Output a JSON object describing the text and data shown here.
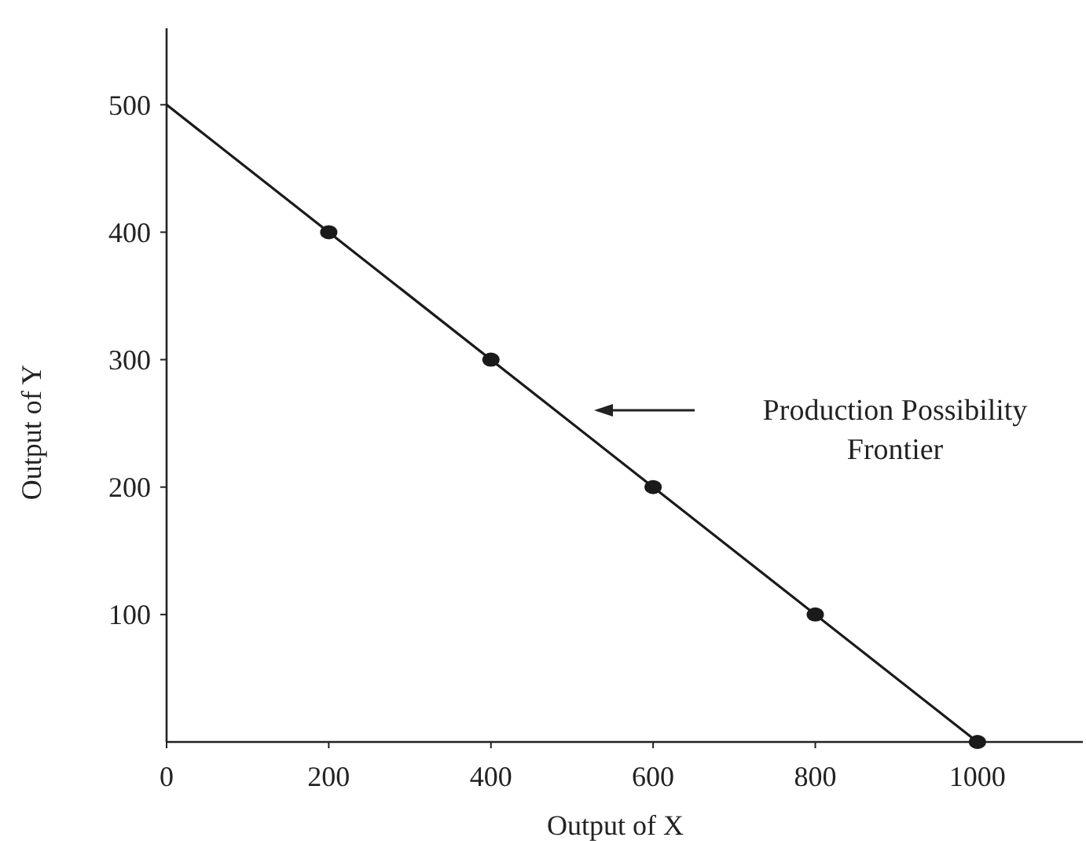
{
  "chart_data": {
    "type": "line",
    "xlabel": "Output of X",
    "ylabel": "Output of Y",
    "series": [
      {
        "color": "#1a1a1a",
        "x": [
          0,
          1000
        ],
        "values": [
          500,
          0
        ],
        "marker": "none"
      },
      {
        "type": "scatter",
        "color": "#1a1a1a",
        "x": [
          200,
          400,
          600,
          800,
          1000
        ],
        "values": [
          400,
          300,
          200,
          100,
          0
        ],
        "marker": "circle"
      }
    ],
    "xlim": [
      0,
      1130
    ],
    "ylim": [
      0,
      560
    ],
    "xticks": [
      0,
      200,
      400,
      600,
      800,
      1000
    ],
    "yticks": [
      100,
      200,
      300,
      400,
      500
    ],
    "annotations": [
      "Production Possibility\nFrontier"
    ]
  }
}
